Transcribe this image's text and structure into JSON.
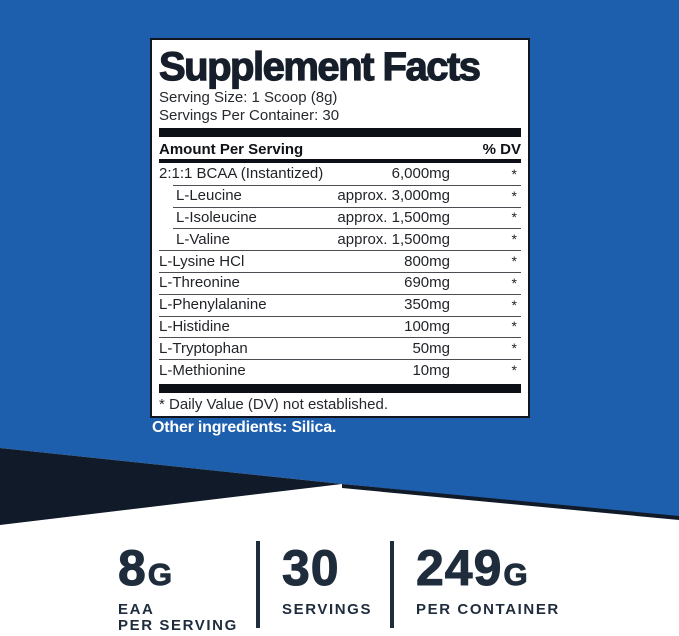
{
  "panel": {
    "title": "Supplement Facts",
    "serving_size": "Serving Size: 1 Scoop (8g)",
    "servings_per_container": "Servings Per Container: 30",
    "header": {
      "amount": "Amount Per Serving",
      "dv": "% DV"
    },
    "rows": [
      {
        "label": "2:1:1 BCAA (Instantized)",
        "amount": "6,000mg",
        "dv": "*"
      },
      {
        "label": "L-Leucine",
        "amount": "approx. 3,000mg",
        "dv": "*"
      },
      {
        "label": "L-Isoleucine",
        "amount": "approx. 1,500mg",
        "dv": "*"
      },
      {
        "label": "L-Valine",
        "amount": "approx. 1,500mg",
        "dv": "*"
      },
      {
        "label": "L-Lysine HCl",
        "amount": "800mg",
        "dv": "*"
      },
      {
        "label": "L-Threonine",
        "amount": "690mg",
        "dv": "*"
      },
      {
        "label": "L-Phenylalanine",
        "amount": "350mg",
        "dv": "*"
      },
      {
        "label": "L-Histidine",
        "amount": "100mg",
        "dv": "*"
      },
      {
        "label": "L-Tryptophan",
        "amount": "50mg",
        "dv": "*"
      },
      {
        "label": "L-Methionine",
        "amount": "10mg",
        "dv": "*"
      }
    ],
    "footnote": "* Daily Value (DV) not established."
  },
  "other_ingredients": "Other ingredients: Silica.",
  "stats": [
    {
      "value": "8",
      "unit": "G",
      "line1": "EAA",
      "line2": "PER SERVING"
    },
    {
      "value": "30",
      "unit": "",
      "line1": "SERVINGS",
      "line2": ""
    },
    {
      "value": "249",
      "unit": "G",
      "line1": "PER CONTAINER",
      "line2": ""
    }
  ],
  "colors": {
    "blue": "#1e5fad",
    "dark_navy": "#101a28",
    "stat_text": "#1f2c3c"
  }
}
